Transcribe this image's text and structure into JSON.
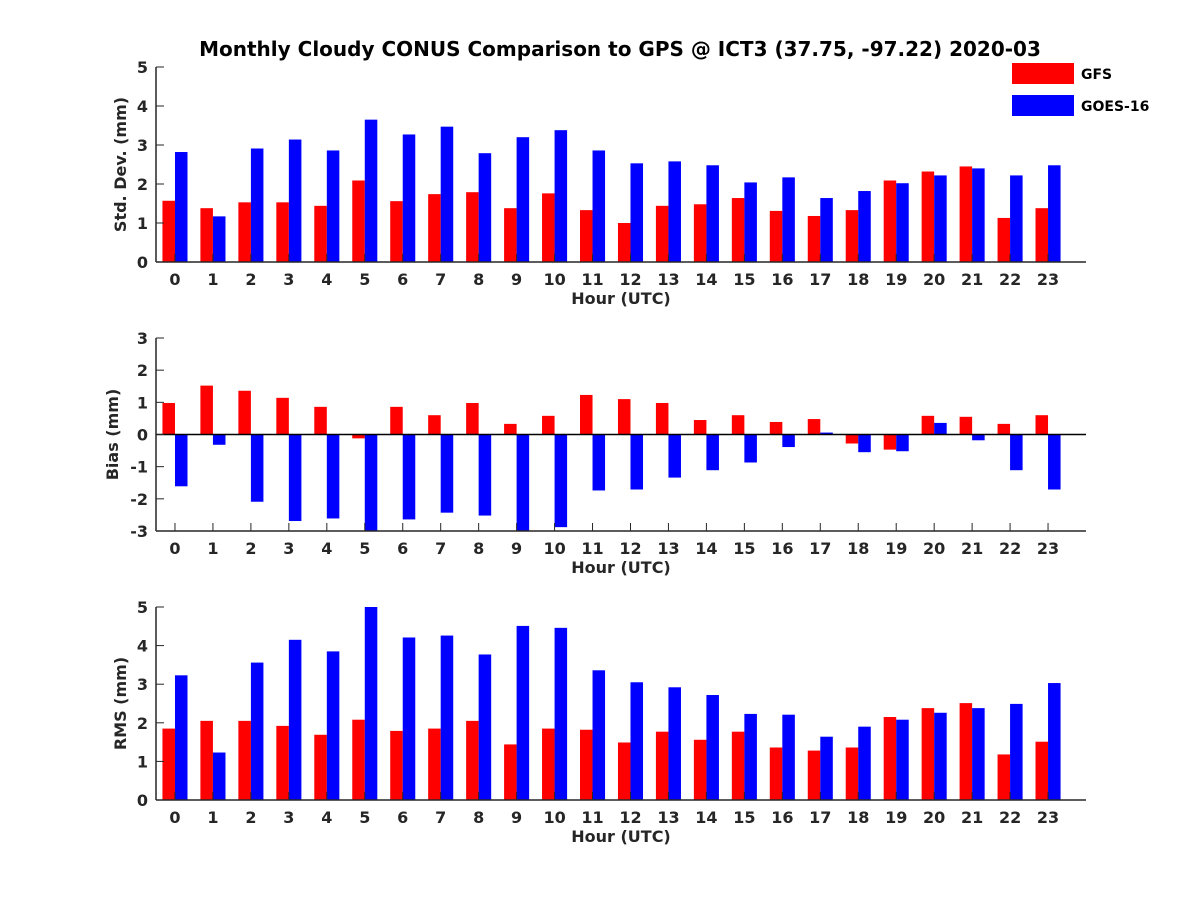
{
  "figure": {
    "title": "Monthly Cloudy CONUS Comparison to GPS @ ICT3 (37.75, -97.22) 2020-03",
    "legend": {
      "position": "top-right",
      "entries": [
        {
          "label": "GFS",
          "color": "#ff0000"
        },
        {
          "label": "GOES-16",
          "color": "#0000ff"
        }
      ]
    }
  },
  "chart_data": [
    {
      "type": "bar",
      "id": "std",
      "title": "",
      "xlabel": "Hour (UTC)",
      "ylabel": "Std. Dev. (mm)",
      "ylim": [
        0,
        5
      ],
      "yticks": [
        0,
        1,
        2,
        3,
        4,
        5
      ],
      "categories": [
        "0",
        "1",
        "2",
        "3",
        "4",
        "5",
        "6",
        "7",
        "8",
        "9",
        "10",
        "11",
        "12",
        "13",
        "14",
        "15",
        "16",
        "17",
        "18",
        "19",
        "20",
        "21",
        "22",
        "23"
      ],
      "series": [
        {
          "name": "GFS",
          "color": "#ff0000",
          "values": [
            1.57,
            1.38,
            1.53,
            1.53,
            1.44,
            2.09,
            1.56,
            1.74,
            1.79,
            1.38,
            1.76,
            1.33,
            1.0,
            1.44,
            1.48,
            1.64,
            1.31,
            1.18,
            1.33,
            2.09,
            2.32,
            2.45,
            1.13,
            1.38
          ]
        },
        {
          "name": "GOES-16",
          "color": "#0000ff",
          "values": [
            2.82,
            1.17,
            2.91,
            3.14,
            2.86,
            3.65,
            3.27,
            3.47,
            2.79,
            3.2,
            3.38,
            2.86,
            2.53,
            2.58,
            2.48,
            2.04,
            2.17,
            1.64,
            1.82,
            2.02,
            2.22,
            2.4,
            2.22,
            2.48
          ]
        }
      ]
    },
    {
      "type": "bar",
      "id": "bias",
      "title": "",
      "xlabel": "Hour (UTC)",
      "ylabel": "Bias (mm)",
      "ylim": [
        -3,
        3
      ],
      "yticks": [
        -3,
        -2,
        -1,
        0,
        1,
        2,
        3
      ],
      "categories": [
        "0",
        "1",
        "2",
        "3",
        "4",
        "5",
        "6",
        "7",
        "8",
        "9",
        "10",
        "11",
        "12",
        "13",
        "14",
        "15",
        "16",
        "17",
        "18",
        "19",
        "20",
        "21",
        "22",
        "23"
      ],
      "series": [
        {
          "name": "GFS",
          "color": "#ff0000",
          "values": [
            0.98,
            1.52,
            1.36,
            1.14,
            0.86,
            -0.12,
            0.86,
            0.6,
            0.98,
            0.33,
            0.58,
            1.23,
            1.1,
            0.98,
            0.45,
            0.6,
            0.39,
            0.48,
            -0.28,
            -0.47,
            0.58,
            0.55,
            0.33,
            0.6
          ]
        },
        {
          "name": "GOES-16",
          "color": "#0000ff",
          "values": [
            -1.61,
            -0.32,
            -2.09,
            -2.69,
            -2.61,
            -3.0,
            -2.64,
            -2.43,
            -2.52,
            -3.0,
            -2.88,
            -1.74,
            -1.71,
            -1.34,
            -1.11,
            -0.87,
            -0.39,
            0.06,
            -0.55,
            -0.52,
            0.36,
            -0.18,
            -1.11,
            -1.71
          ]
        }
      ]
    },
    {
      "type": "bar",
      "id": "rms",
      "title": "",
      "xlabel": "Hour (UTC)",
      "ylabel": "RMS (mm)",
      "ylim": [
        0,
        5
      ],
      "yticks": [
        0,
        1,
        2,
        3,
        4,
        5
      ],
      "categories": [
        "0",
        "1",
        "2",
        "3",
        "4",
        "5",
        "6",
        "7",
        "8",
        "9",
        "10",
        "11",
        "12",
        "13",
        "14",
        "15",
        "16",
        "17",
        "18",
        "19",
        "20",
        "21",
        "22",
        "23"
      ],
      "series": [
        {
          "name": "GFS",
          "color": "#ff0000",
          "values": [
            1.85,
            2.05,
            2.05,
            1.92,
            1.69,
            2.08,
            1.79,
            1.85,
            2.05,
            1.44,
            1.85,
            1.82,
            1.49,
            1.77,
            1.56,
            1.77,
            1.36,
            1.28,
            1.36,
            2.15,
            2.38,
            2.51,
            1.18,
            1.51
          ]
        },
        {
          "name": "GOES-16",
          "color": "#0000ff",
          "values": [
            3.23,
            1.23,
            3.56,
            4.15,
            3.85,
            5.0,
            4.21,
            4.26,
            3.77,
            4.51,
            4.46,
            3.36,
            3.05,
            2.92,
            2.72,
            2.23,
            2.21,
            1.64,
            1.9,
            2.08,
            2.26,
            2.38,
            2.49,
            3.03
          ]
        }
      ]
    }
  ]
}
